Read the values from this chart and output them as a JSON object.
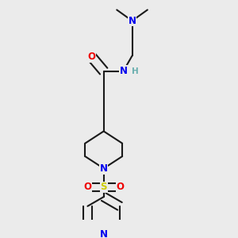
{
  "bg_color": "#ebebeb",
  "bond_color": "#1a1a1a",
  "bond_width": 1.5,
  "atom_colors": {
    "N": "#0000ee",
    "O": "#ee0000",
    "S": "#cccc00",
    "H": "#6aafaf",
    "C": "#1a1a1a"
  },
  "font_size": 8.5
}
